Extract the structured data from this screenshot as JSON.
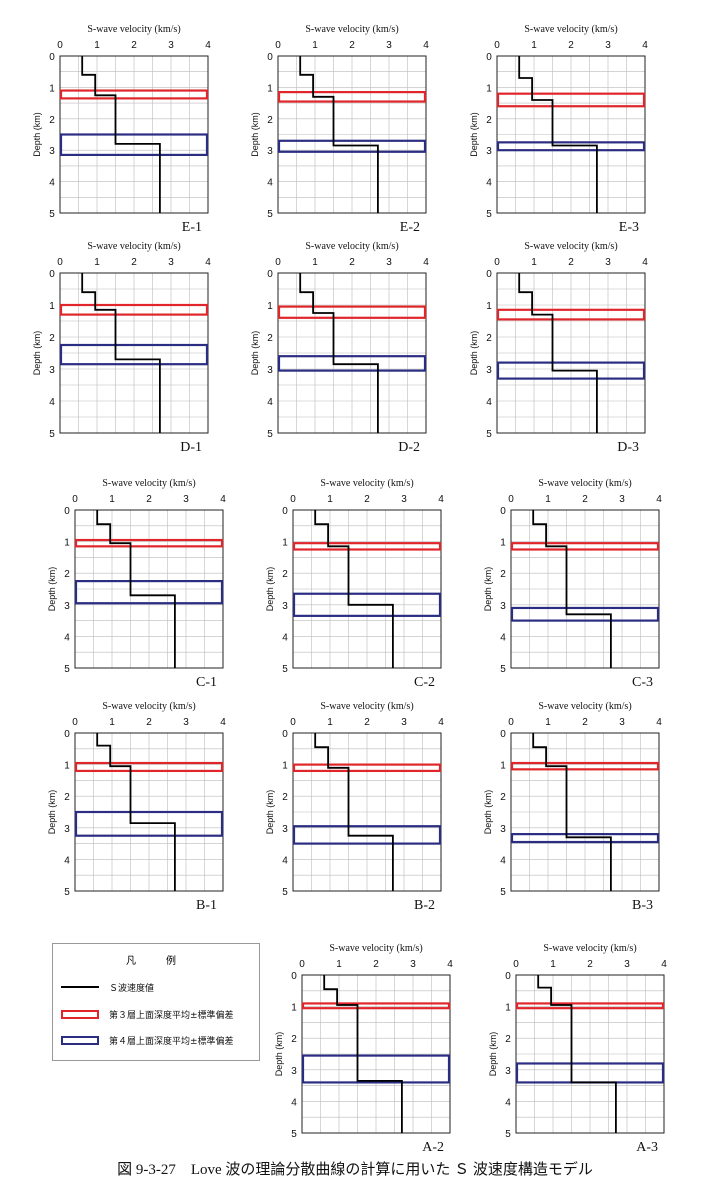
{
  "colors": {
    "velocity": "#000000",
    "layer3": "#e0262b",
    "layer4": "#2b2d82",
    "grid": "#bbbbbb"
  },
  "common": {
    "x_label": "S-wave velocity (km/s)",
    "y_label": "Depth (km)",
    "x_ticks": [
      "0",
      "1",
      "2",
      "3",
      "4"
    ],
    "y_ticks": [
      "0",
      "1",
      "2",
      "3",
      "4",
      "5"
    ]
  },
  "legend": {
    "title": "凡　例",
    "items": [
      {
        "text": "Ｓ波速度値",
        "style": "line",
        "color": "#000000"
      },
      {
        "text": "第３層上面深度平均±標準偏差",
        "style": "box",
        "color": "#e0262b"
      },
      {
        "text": "第４層上面深度平均±標準偏差",
        "style": "box",
        "color": "#2b2d82"
      }
    ]
  },
  "caption": "図 9-3-27　Love 波の理論分散曲線の計算に用いた Ｓ 波速度構造モデル",
  "chart_data": [
    {
      "id": "E-1",
      "label": "E-1",
      "type": "line",
      "xlim": [
        0,
        4
      ],
      "ylim": [
        0,
        5
      ],
      "grid": true,
      "profile": [
        [
          0.6,
          0
        ],
        [
          0.6,
          0.6
        ],
        [
          0.95,
          0.6
        ],
        [
          0.95,
          1.25
        ],
        [
          1.5,
          1.25
        ],
        [
          1.5,
          2.8
        ],
        [
          2.7,
          2.8
        ],
        [
          2.7,
          5
        ]
      ],
      "layer3_band": [
        1.1,
        1.35
      ],
      "layer4_band": [
        2.5,
        3.15
      ]
    },
    {
      "id": "E-2",
      "label": "E-2",
      "type": "line",
      "xlim": [
        0,
        4
      ],
      "ylim": [
        0,
        5
      ],
      "grid": true,
      "profile": [
        [
          0.6,
          0
        ],
        [
          0.6,
          0.6
        ],
        [
          0.95,
          0.6
        ],
        [
          0.95,
          1.3
        ],
        [
          1.5,
          1.3
        ],
        [
          1.5,
          2.85
        ],
        [
          2.7,
          2.85
        ],
        [
          2.7,
          5
        ]
      ],
      "layer3_band": [
        1.15,
        1.45
      ],
      "layer4_band": [
        2.7,
        3.05
      ]
    },
    {
      "id": "E-3",
      "label": "E-3",
      "type": "line",
      "xlim": [
        0,
        4
      ],
      "ylim": [
        0,
        5
      ],
      "grid": true,
      "profile": [
        [
          0.6,
          0
        ],
        [
          0.6,
          0.7
        ],
        [
          0.95,
          0.7
        ],
        [
          0.95,
          1.4
        ],
        [
          1.5,
          1.4
        ],
        [
          1.5,
          2.85
        ],
        [
          2.7,
          2.85
        ],
        [
          2.7,
          5
        ]
      ],
      "layer3_band": [
        1.2,
        1.6
      ],
      "layer4_band": [
        2.75,
        3.0
      ]
    },
    {
      "id": "D-1",
      "label": "D-1",
      "type": "line",
      "xlim": [
        0,
        4
      ],
      "ylim": [
        0,
        5
      ],
      "grid": true,
      "profile": [
        [
          0.6,
          0
        ],
        [
          0.6,
          0.6
        ],
        [
          0.95,
          0.6
        ],
        [
          0.95,
          1.15
        ],
        [
          1.5,
          1.15
        ],
        [
          1.5,
          2.7
        ],
        [
          2.7,
          2.7
        ],
        [
          2.7,
          5
        ]
      ],
      "layer3_band": [
        1.0,
        1.3
      ],
      "layer4_band": [
        2.25,
        2.85
      ]
    },
    {
      "id": "D-2",
      "label": "D-2",
      "type": "line",
      "xlim": [
        0,
        4
      ],
      "ylim": [
        0,
        5
      ],
      "grid": true,
      "profile": [
        [
          0.6,
          0
        ],
        [
          0.6,
          0.6
        ],
        [
          0.95,
          0.6
        ],
        [
          0.95,
          1.25
        ],
        [
          1.5,
          1.25
        ],
        [
          1.5,
          2.85
        ],
        [
          2.7,
          2.85
        ],
        [
          2.7,
          5
        ]
      ],
      "layer3_band": [
        1.05,
        1.4
      ],
      "layer4_band": [
        2.6,
        3.05
      ]
    },
    {
      "id": "D-3",
      "label": "D-3",
      "type": "line",
      "xlim": [
        0,
        4
      ],
      "ylim": [
        0,
        5
      ],
      "grid": true,
      "profile": [
        [
          0.6,
          0
        ],
        [
          0.6,
          0.6
        ],
        [
          0.95,
          0.6
        ],
        [
          0.95,
          1.3
        ],
        [
          1.5,
          1.3
        ],
        [
          1.5,
          3.05
        ],
        [
          2.7,
          3.05
        ],
        [
          2.7,
          5
        ]
      ],
      "layer3_band": [
        1.15,
        1.45
      ],
      "layer4_band": [
        2.8,
        3.3
      ]
    },
    {
      "id": "C-1",
      "label": "C-1",
      "type": "line",
      "xlim": [
        0,
        4
      ],
      "ylim": [
        0,
        5
      ],
      "grid": true,
      "profile": [
        [
          0.6,
          0
        ],
        [
          0.6,
          0.45
        ],
        [
          0.95,
          0.45
        ],
        [
          0.95,
          1.05
        ],
        [
          1.5,
          1.05
        ],
        [
          1.5,
          2.7
        ],
        [
          2.7,
          2.7
        ],
        [
          2.7,
          5
        ]
      ],
      "layer3_band": [
        0.95,
        1.15
      ],
      "layer4_band": [
        2.25,
        2.95
      ]
    },
    {
      "id": "C-2",
      "label": "C-2",
      "type": "line",
      "xlim": [
        0,
        4
      ],
      "ylim": [
        0,
        5
      ],
      "grid": true,
      "profile": [
        [
          0.6,
          0
        ],
        [
          0.6,
          0.45
        ],
        [
          0.95,
          0.45
        ],
        [
          0.95,
          1.15
        ],
        [
          1.5,
          1.15
        ],
        [
          1.5,
          3.0
        ],
        [
          2.7,
          3.0
        ],
        [
          2.7,
          5
        ]
      ],
      "layer3_band": [
        1.05,
        1.25
      ],
      "layer4_band": [
        2.65,
        3.35
      ]
    },
    {
      "id": "C-3",
      "label": "C-3",
      "type": "line",
      "xlim": [
        0,
        4
      ],
      "ylim": [
        0,
        5
      ],
      "grid": true,
      "profile": [
        [
          0.6,
          0
        ],
        [
          0.6,
          0.45
        ],
        [
          0.95,
          0.45
        ],
        [
          0.95,
          1.15
        ],
        [
          1.5,
          1.15
        ],
        [
          1.5,
          3.3
        ],
        [
          2.7,
          3.3
        ],
        [
          2.7,
          5
        ]
      ],
      "layer3_band": [
        1.05,
        1.25
      ],
      "layer4_band": [
        3.1,
        3.5
      ]
    },
    {
      "id": "B-1",
      "label": "B-1",
      "type": "line",
      "xlim": [
        0,
        4
      ],
      "ylim": [
        0,
        5
      ],
      "grid": true,
      "profile": [
        [
          0.6,
          0
        ],
        [
          0.6,
          0.4
        ],
        [
          0.95,
          0.4
        ],
        [
          0.95,
          1.05
        ],
        [
          1.5,
          1.05
        ],
        [
          1.5,
          2.85
        ],
        [
          2.7,
          2.85
        ],
        [
          2.7,
          5
        ]
      ],
      "layer3_band": [
        0.95,
        1.2
      ],
      "layer4_band": [
        2.5,
        3.25
      ]
    },
    {
      "id": "B-2",
      "label": "B-2",
      "type": "line",
      "xlim": [
        0,
        4
      ],
      "ylim": [
        0,
        5
      ],
      "grid": true,
      "profile": [
        [
          0.6,
          0
        ],
        [
          0.6,
          0.45
        ],
        [
          0.95,
          0.45
        ],
        [
          0.95,
          1.1
        ],
        [
          1.5,
          1.1
        ],
        [
          1.5,
          3.25
        ],
        [
          2.7,
          3.25
        ],
        [
          2.7,
          5
        ]
      ],
      "layer3_band": [
        1.0,
        1.2
      ],
      "layer4_band": [
        2.95,
        3.5
      ]
    },
    {
      "id": "B-3",
      "label": "B-3",
      "type": "line",
      "xlim": [
        0,
        4
      ],
      "ylim": [
        0,
        5
      ],
      "grid": true,
      "profile": [
        [
          0.6,
          0
        ],
        [
          0.6,
          0.45
        ],
        [
          0.95,
          0.45
        ],
        [
          0.95,
          1.05
        ],
        [
          1.5,
          1.05
        ],
        [
          1.5,
          3.3
        ],
        [
          2.7,
          3.3
        ],
        [
          2.7,
          5
        ]
      ],
      "layer3_band": [
        0.95,
        1.15
      ],
      "layer4_band": [
        3.2,
        3.45
      ]
    },
    {
      "id": "A-2",
      "label": "A-2",
      "type": "line",
      "xlim": [
        0,
        4
      ],
      "ylim": [
        0,
        5
      ],
      "grid": true,
      "profile": [
        [
          0.6,
          0
        ],
        [
          0.6,
          0.45
        ],
        [
          0.95,
          0.45
        ],
        [
          0.95,
          0.95
        ],
        [
          1.5,
          0.95
        ],
        [
          1.5,
          3.35
        ],
        [
          2.7,
          3.35
        ],
        [
          2.7,
          5
        ]
      ],
      "layer3_band": [
        0.9,
        1.05
      ],
      "layer4_band": [
        2.55,
        3.4
      ]
    },
    {
      "id": "A-3",
      "label": "A-3",
      "type": "line",
      "xlim": [
        0,
        4
      ],
      "ylim": [
        0,
        5
      ],
      "grid": true,
      "profile": [
        [
          0.6,
          0
        ],
        [
          0.6,
          0.4
        ],
        [
          0.95,
          0.4
        ],
        [
          0.95,
          0.95
        ],
        [
          1.5,
          0.95
        ],
        [
          1.5,
          3.4
        ],
        [
          2.7,
          3.4
        ],
        [
          2.7,
          5
        ]
      ],
      "layer3_band": [
        0.9,
        1.05
      ],
      "layer4_band": [
        2.8,
        3.4
      ]
    }
  ]
}
